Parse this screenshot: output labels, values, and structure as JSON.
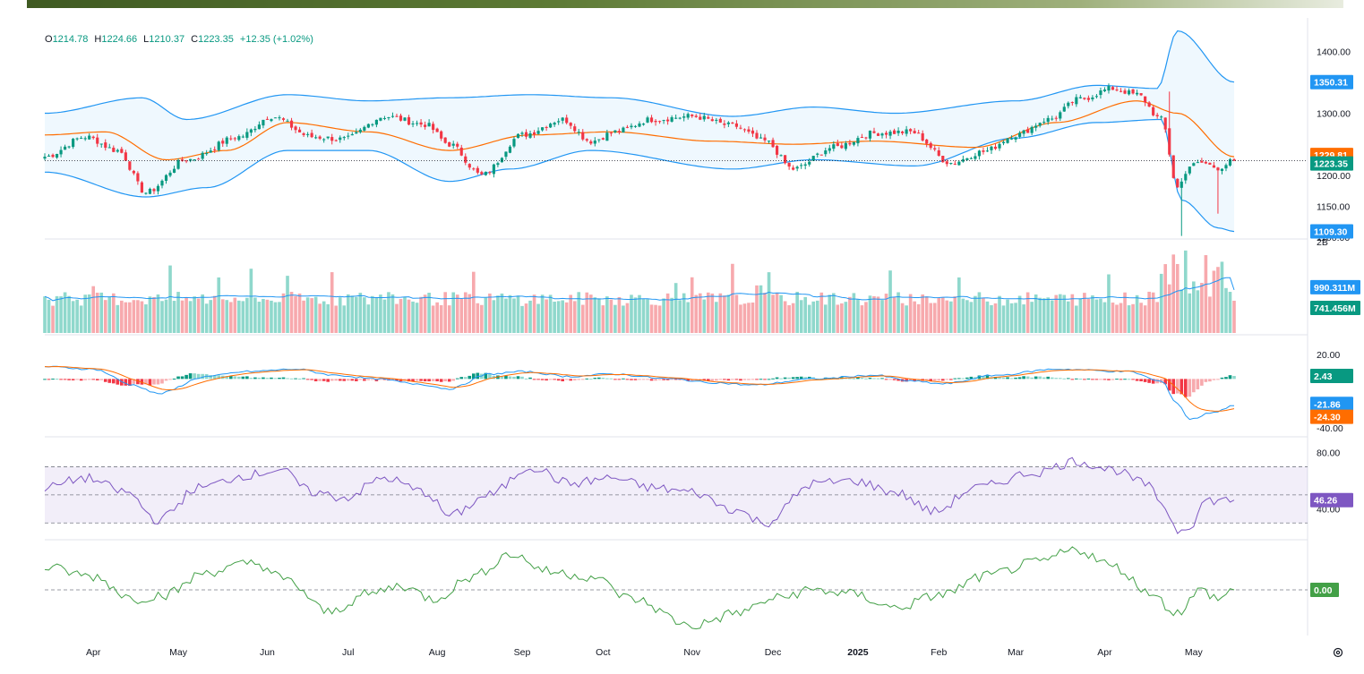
{
  "legend": {
    "o_label": "O",
    "o_value": "1214.78",
    "h_label": "H",
    "h_value": "1224.66",
    "l_label": "L",
    "l_value": "1210.37",
    "c_label": "C",
    "c_value": "1223.35",
    "change": "+12.35 (+1.02%)"
  },
  "colors": {
    "up": "#089981",
    "down": "#f23645",
    "up_light": "#8fd8cc",
    "down_light": "#f7a9ad",
    "bb_band": "#2196f3",
    "bb_basis": "#ff6d00",
    "rsi": "#7e57c2",
    "osc": "#43a047",
    "macd": "#2196f3",
    "signal": "#ff6d00"
  },
  "chart_data": [
    {
      "type": "candlestick",
      "name": "price",
      "ylim": [
        1100,
        1425
      ],
      "yticks": [
        "1400.00",
        "1300.00",
        "1200.00",
        "1150.00"
      ],
      "last_close": 1223.35,
      "last_close_label": "1223.35",
      "bb_upper_label": "1350.31",
      "bb_basis_label": "1229.81",
      "bb_lower_label": "1109.30",
      "hidden_tick_label": "1100.00",
      "anchors_close": [
        [
          0,
          1230
        ],
        [
          10,
          1262
        ],
        [
          18,
          1240
        ],
        [
          25,
          1172
        ],
        [
          35,
          1225
        ],
        [
          48,
          1262
        ],
        [
          56,
          1295
        ],
        [
          66,
          1262
        ],
        [
          74,
          1258
        ],
        [
          84,
          1295
        ],
        [
          94,
          1282
        ],
        [
          100,
          1250
        ],
        [
          108,
          1200
        ],
        [
          118,
          1265
        ],
        [
          128,
          1290
        ],
        [
          135,
          1255
        ],
        [
          141,
          1270
        ],
        [
          150,
          1290
        ],
        [
          160,
          1295
        ],
        [
          170,
          1280
        ],
        [
          178,
          1255
        ],
        [
          185,
          1210
        ],
        [
          195,
          1245
        ],
        [
          205,
          1268
        ],
        [
          214,
          1270
        ],
        [
          224,
          1220
        ],
        [
          232,
          1238
        ],
        [
          240,
          1265
        ],
        [
          248,
          1290
        ],
        [
          256,
          1323
        ],
        [
          264,
          1340
        ],
        [
          270,
          1330
        ],
        [
          276,
          1290
        ],
        [
          280,
          1180
        ],
        [
          283,
          1215
        ],
        [
          286,
          1220
        ],
        [
          290,
          1212
        ],
        [
          294,
          1223.35
        ]
      ],
      "bb_upper_anchor": [
        [
          0,
          1300
        ],
        [
          24,
          1325
        ],
        [
          35,
          1290
        ],
        [
          60,
          1330
        ],
        [
          80,
          1320
        ],
        [
          100,
          1325
        ],
        [
          120,
          1330
        ],
        [
          140,
          1325
        ],
        [
          170,
          1295
        ],
        [
          190,
          1310
        ],
        [
          210,
          1300
        ],
        [
          240,
          1320
        ],
        [
          260,
          1345
        ],
        [
          275,
          1340
        ],
        [
          280,
          1433
        ],
        [
          294,
          1350.31
        ]
      ],
      "bb_lower_anchor": [
        [
          0,
          1205
        ],
        [
          25,
          1165
        ],
        [
          40,
          1180
        ],
        [
          60,
          1240
        ],
        [
          80,
          1240
        ],
        [
          100,
          1190
        ],
        [
          115,
          1210
        ],
        [
          135,
          1240
        ],
        [
          170,
          1210
        ],
        [
          190,
          1225
        ],
        [
          215,
          1215
        ],
        [
          240,
          1260
        ],
        [
          260,
          1285
        ],
        [
          276,
          1290
        ],
        [
          281,
          1160
        ],
        [
          290,
          1115
        ],
        [
          294,
          1109.3
        ]
      ],
      "bb_basis_anchor": [
        [
          0,
          1265
        ],
        [
          15,
          1270
        ],
        [
          30,
          1225
        ],
        [
          45,
          1240
        ],
        [
          60,
          1285
        ],
        [
          80,
          1270
        ],
        [
          100,
          1240
        ],
        [
          120,
          1265
        ],
        [
          140,
          1270
        ],
        [
          165,
          1255
        ],
        [
          185,
          1250
        ],
        [
          205,
          1255
        ],
        [
          230,
          1245
        ],
        [
          250,
          1285
        ],
        [
          270,
          1320
        ],
        [
          280,
          1300
        ],
        [
          294,
          1229.81
        ]
      ]
    },
    {
      "type": "bar",
      "name": "volume",
      "yticks": [
        "2B"
      ],
      "ma_label": "990.311M",
      "last_label": "741.456M"
    },
    {
      "type": "macd",
      "name": "macd",
      "ylim": [
        -45,
        28
      ],
      "yticks": [
        "20.00",
        "-40.00"
      ],
      "hist_label": "2.43",
      "macd_label": "-21.86",
      "signal_label": "-24.30"
    },
    {
      "type": "line",
      "name": "rsi",
      "ylim": [
        20,
        90
      ],
      "yticks": [
        "80.00",
        "40.00"
      ],
      "upper_band": 70,
      "middle_band": 50,
      "lower_band": 30,
      "last_label": "46.26"
    },
    {
      "type": "line",
      "name": "oscillator",
      "zero_label": "0.00"
    }
  ],
  "x_axis": {
    "months": [
      "Apr",
      "May",
      "Jun",
      "Jul",
      "Aug",
      "Sep",
      "Oct",
      "Nov",
      "Dec",
      "2025",
      "Feb",
      "Mar",
      "Apr",
      "May"
    ],
    "month_index": [
      12,
      33,
      55,
      75,
      97,
      118,
      138,
      160,
      180,
      201,
      221,
      240,
      262,
      284
    ]
  }
}
